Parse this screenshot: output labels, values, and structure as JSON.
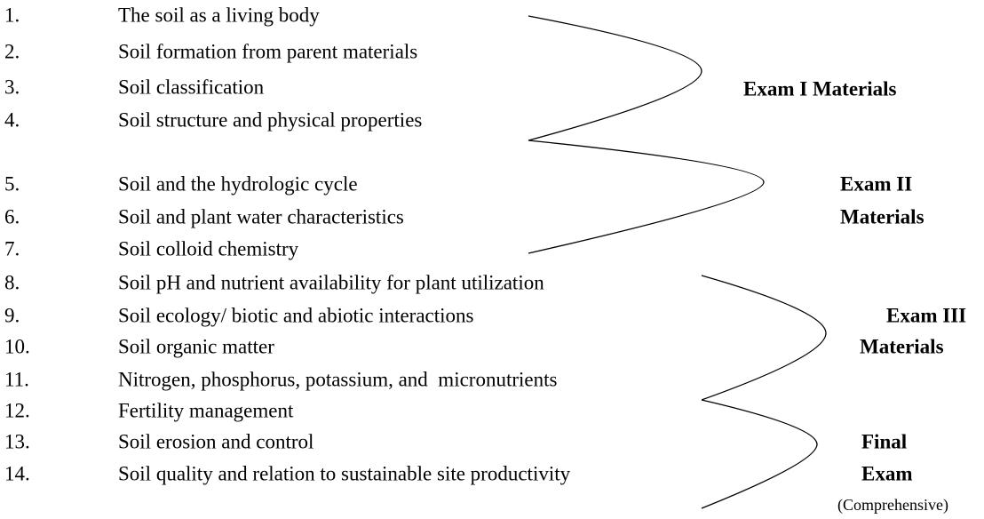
{
  "items": [
    {
      "number": "1.",
      "text": "The soil as a living body"
    },
    {
      "number": "2.",
      "text": "Soil formation from parent materials"
    },
    {
      "number": "3.",
      "text": "Soil classification"
    },
    {
      "number": "4.",
      "text": "Soil structure and physical properties"
    },
    {
      "number": "5.",
      "text": "Soil and the hydrologic cycle"
    },
    {
      "number": "6.",
      "text": "Soil and plant water characteristics"
    },
    {
      "number": "7.",
      "text": "Soil colloid chemistry"
    },
    {
      "number": "8.",
      "text": "Soil pH and nutrient availability for plant utilization"
    },
    {
      "number": "9.",
      "text": "Soil ecology/ biotic and abiotic interactions"
    },
    {
      "number": "10.",
      "text": "Soil organic matter"
    },
    {
      "number": "11.",
      "text": "Nitrogen, phosphorus, potassium, and  micronutrients"
    },
    {
      "number": "12.",
      "text": "Fertility management"
    },
    {
      "number": "13.",
      "text": "Soil erosion and control"
    },
    {
      "number": "14.",
      "text": "Soil quality and relation to sustainable site productivity"
    }
  ],
  "groups": [
    {
      "lines": [
        "Exam I Materials"
      ]
    },
    {
      "lines": [
        "Exam II",
        "Materials"
      ]
    },
    {
      "lines": [
        "Exam III",
        "Materials"
      ]
    },
    {
      "lines": [
        "Final",
        "Exam"
      ],
      "note": "(Comprehensive)"
    }
  ]
}
